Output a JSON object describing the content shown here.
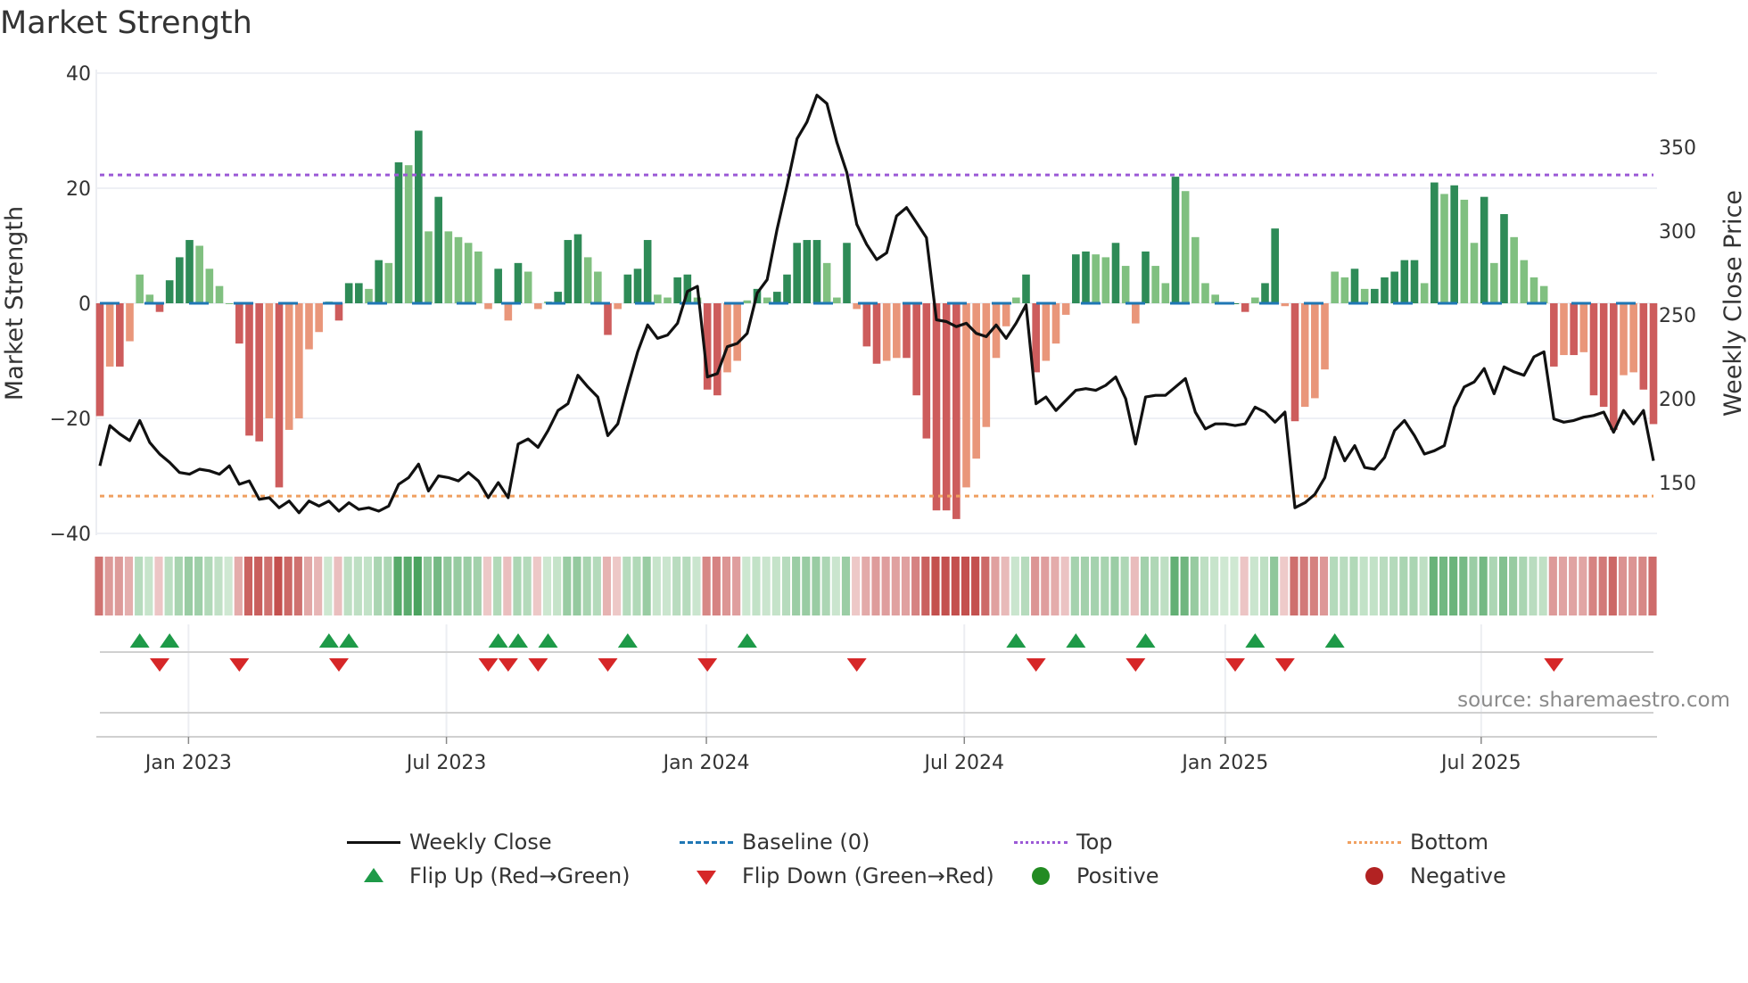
{
  "chart_data": {
    "type": "bar",
    "title": "Market Strength",
    "ylabel": "Market Strength",
    "y2label": "Weekly Close Price",
    "ylim": [
      -40,
      40
    ],
    "y2lim": [
      125,
      375
    ],
    "yticks": [
      "40",
      "20",
      "0",
      "−20",
      "−40"
    ],
    "ytick_values": [
      40,
      20,
      0,
      -20,
      -40
    ],
    "y2ticks": [
      "350",
      "300",
      "250",
      "200",
      "150"
    ],
    "y2tick_values": [
      350,
      300,
      250,
      200,
      150
    ],
    "xticks": [
      "Jan 2023",
      "Jul 2023",
      "Jan 2024",
      "Jul 2024",
      "Jan 2025",
      "Jul 2025"
    ],
    "xtick_week_index": [
      8.9,
      34.8,
      60.9,
      86.8,
      113.0,
      138.7
    ],
    "frequency": "weekly",
    "top_level": 22.3,
    "bottom_level": -33.5,
    "baseline": 0,
    "strength": [
      -19.6,
      -11,
      -11,
      -6.6,
      5,
      1.5,
      -1.5,
      4,
      8,
      11,
      10,
      6,
      3,
      0,
      -7,
      -23,
      -24,
      -20,
      -32,
      -22,
      -20,
      -8,
      -5,
      0.3,
      -3,
      3.5,
      3.5,
      2.5,
      7.5,
      7,
      24.5,
      24,
      30,
      12.5,
      18.5,
      12.5,
      11.5,
      10.5,
      9,
      -1,
      6,
      -3,
      7,
      5.5,
      -1,
      0.3,
      2,
      11,
      12,
      8,
      5.5,
      -5.5,
      -1,
      5,
      6,
      11,
      1.5,
      1,
      4.5,
      5,
      1,
      -15,
      -16,
      -12,
      -10,
      0.5,
      2.5,
      1,
      2,
      5,
      10.5,
      11,
      11,
      7,
      1,
      10.5,
      -1,
      -7.5,
      -10.5,
      -10,
      -9.5,
      -9.5,
      -16,
      -23.5,
      -36,
      -36,
      -37.5,
      -32,
      -27,
      -21.5,
      -9.5,
      -4,
      1,
      5,
      -12,
      -10,
      -7,
      -2,
      8.5,
      9,
      8.5,
      8,
      10.5,
      6.5,
      -3.5,
      9,
      6.5,
      3.5,
      22,
      19.5,
      11.5,
      3.5,
      1.5,
      0,
      0,
      -1.5,
      1,
      3.5,
      13,
      -0.5,
      -20.5,
      -18,
      -16.5,
      -11.5,
      5.5,
      4.5,
      6,
      2.5,
      2.5,
      4.5,
      5.5,
      7.5,
      7.5,
      3.5,
      21,
      19,
      20.5,
      18,
      10.5,
      18.5,
      7,
      15.5,
      11.5,
      7.5,
      4.5,
      3,
      -11,
      -9,
      -9,
      -8.5,
      -16,
      -18,
      -22,
      -12.5,
      -12,
      -15,
      -21
    ],
    "weekly_close": [
      160,
      184,
      179,
      175,
      187,
      174,
      167,
      162,
      156,
      155,
      158,
      157,
      155,
      160,
      149,
      151,
      140,
      141,
      135,
      139,
      132,
      139,
      136,
      139,
      133,
      138,
      134,
      135,
      133,
      136,
      149,
      153,
      161,
      145,
      154,
      153,
      151,
      156,
      151,
      141,
      150,
      141,
      173,
      176,
      171,
      181,
      193,
      197,
      214,
      207,
      201,
      178,
      185,
      207,
      228,
      244,
      236,
      238,
      245,
      264,
      267,
      213,
      215,
      231,
      233,
      239,
      263,
      271,
      301,
      327,
      355,
      365,
      381,
      376,
      353,
      335,
      304,
      292,
      283,
      287,
      309,
      314,
      305,
      296,
      247,
      246,
      243,
      245,
      239,
      237,
      244,
      236,
      245,
      256,
      197,
      201,
      193,
      199,
      205,
      206,
      205,
      208,
      213,
      200,
      173,
      201,
      202,
      202,
      207,
      212,
      192,
      182,
      185,
      185,
      184,
      185,
      195,
      192,
      186,
      192,
      135,
      138,
      143,
      153,
      177,
      163,
      172,
      159,
      158,
      165,
      181,
      187,
      178,
      167,
      169,
      172,
      195,
      207,
      210,
      218,
      203,
      219,
      216,
      214,
      225,
      228,
      188,
      186,
      187,
      189,
      190,
      192,
      180,
      193,
      185,
      193,
      163
    ],
    "flip_up_week_index": [
      4,
      7,
      23,
      25,
      40,
      42,
      45,
      53,
      65,
      92,
      98,
      105,
      116,
      124
    ],
    "flip_down_week_index": [
      6,
      14,
      24,
      39,
      41,
      44,
      51,
      61,
      76,
      94,
      104,
      114,
      119,
      146
    ],
    "legend": {
      "placement": "bottom",
      "items": [
        "Weekly Close",
        "Baseline (0)",
        "Top",
        "Bottom",
        "Flip Up (Red→Green)",
        "Flip Down (Green→Red)",
        "Positive",
        "Negative"
      ]
    },
    "annotation": "source: sharemaestro.com"
  },
  "colors": {
    "pos_strong": "#2e8b57",
    "pos_weak": "#80c080",
    "neg_strong": "#cd5c5c",
    "neg_weak": "#e9967a",
    "close": "#111111",
    "baseline": "#1f77b4",
    "top": "#9b59d6",
    "bottom": "#f0a060",
    "flip_up": "#1e9a48",
    "flip_down": "#d62728",
    "positive": "#228b22",
    "negative": "#b22222"
  }
}
